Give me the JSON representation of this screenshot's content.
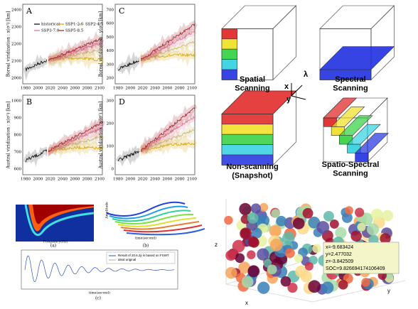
{
  "climate_panels": {
    "panels": [
      {
        "letter": "A",
        "ylabel": "Boreal viridization : x(σ²) [km]",
        "yticks": [
          "2400",
          "2300",
          "2200",
          "2100",
          "2000"
        ]
      },
      {
        "letter": "C",
        "ylabel": "Boreal viridization : y(σ²) [km]",
        "yticks": [
          "700",
          "600",
          "500",
          "400",
          "300",
          "200"
        ]
      },
      {
        "letter": "B",
        "ylabel": "Austral viridization : x(σ²) [km]",
        "yticks": [
          "1000",
          "900",
          "800",
          "700",
          "600"
        ]
      },
      {
        "letter": "D",
        "ylabel": "Austral viridization : y(σ²) [km]",
        "yticks": [
          "300",
          "200",
          "100",
          "0"
        ]
      }
    ],
    "xticks": [
      "1980",
      "2000",
      "2020",
      "2040",
      "2060",
      "2080",
      "2100"
    ],
    "legend": [
      "historical",
      "SSP1-2.6",
      "SSP2-4.5",
      "SSP3-7.0",
      "SSP5-8.5"
    ]
  },
  "scanning_diagram": {
    "labels": [
      "Spatial\nScanning",
      "Spectral\nScanning",
      "Non-scanning\n(Snapshot)",
      "Spatio-Spectral\nScanning"
    ],
    "axes": [
      "x",
      "y",
      "λ"
    ]
  },
  "signal_figure": {
    "captions": [
      "(a)",
      "(b)",
      "(c)"
    ],
    "axis_labels": [
      "Frequency(Hz)",
      "time(second)",
      "Amplitude",
      "time(second)"
    ],
    "legend": [
      "Result of 20.6.2ji is based on FSWT",
      "ideal original"
    ]
  },
  "scatter3d": {
    "axes": [
      "z",
      "x",
      "y"
    ],
    "tooltip": [
      "x=-9.683424",
      "y=2.477032",
      "z=-3.842509",
      "SOC=9.826694174106409"
    ]
  }
}
